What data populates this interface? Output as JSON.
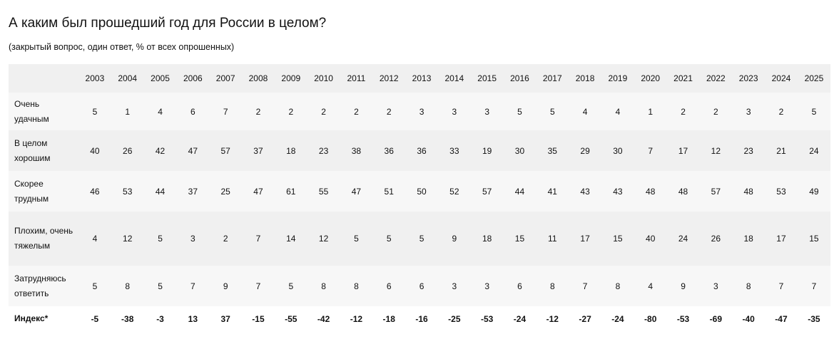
{
  "title": "А каким был прошедший год для России в целом?",
  "subtitle": "(закрытый вопрос, один ответ, % от всех опрошенных)",
  "table": {
    "columns": [
      2003,
      2004,
      2005,
      2006,
      2007,
      2008,
      2009,
      2010,
      2011,
      2012,
      2013,
      2014,
      2015,
      2016,
      2017,
      2018,
      2019,
      2020,
      2021,
      2022,
      2023,
      2024,
      2025
    ],
    "rows": [
      {
        "label": "Очень удачным",
        "values": [
          5,
          1,
          4,
          6,
          7,
          2,
          2,
          2,
          2,
          2,
          3,
          3,
          3,
          5,
          5,
          4,
          4,
          1,
          2,
          2,
          3,
          2,
          5
        ]
      },
      {
        "label": "В целом хорошим",
        "values": [
          40,
          26,
          42,
          47,
          57,
          37,
          18,
          23,
          38,
          36,
          36,
          33,
          19,
          30,
          35,
          29,
          30,
          7,
          17,
          12,
          23,
          21,
          24
        ]
      },
      {
        "label": "Скорее трудным",
        "values": [
          46,
          53,
          44,
          37,
          25,
          47,
          61,
          55,
          47,
          51,
          50,
          52,
          57,
          44,
          41,
          43,
          43,
          48,
          48,
          57,
          48,
          53,
          49
        ]
      },
      {
        "label": "Плохим, очень тяжелым",
        "values": [
          4,
          12,
          5,
          3,
          2,
          7,
          14,
          12,
          5,
          5,
          5,
          9,
          18,
          15,
          11,
          17,
          15,
          40,
          24,
          26,
          18,
          17,
          15
        ]
      },
      {
        "label": "Затрудняюсь ответить",
        "values": [
          5,
          8,
          5,
          7,
          9,
          7,
          5,
          8,
          8,
          6,
          6,
          3,
          3,
          6,
          8,
          7,
          8,
          4,
          9,
          3,
          8,
          7,
          7
        ]
      },
      {
        "label": "Индекс*",
        "values": [
          -5,
          -38,
          -3,
          13,
          37,
          -15,
          -55,
          -42,
          -12,
          -18,
          -16,
          -25,
          -53,
          -24,
          -12,
          -27,
          -24,
          -80,
          -53,
          -69,
          -40,
          -47,
          -35
        ]
      }
    ]
  }
}
